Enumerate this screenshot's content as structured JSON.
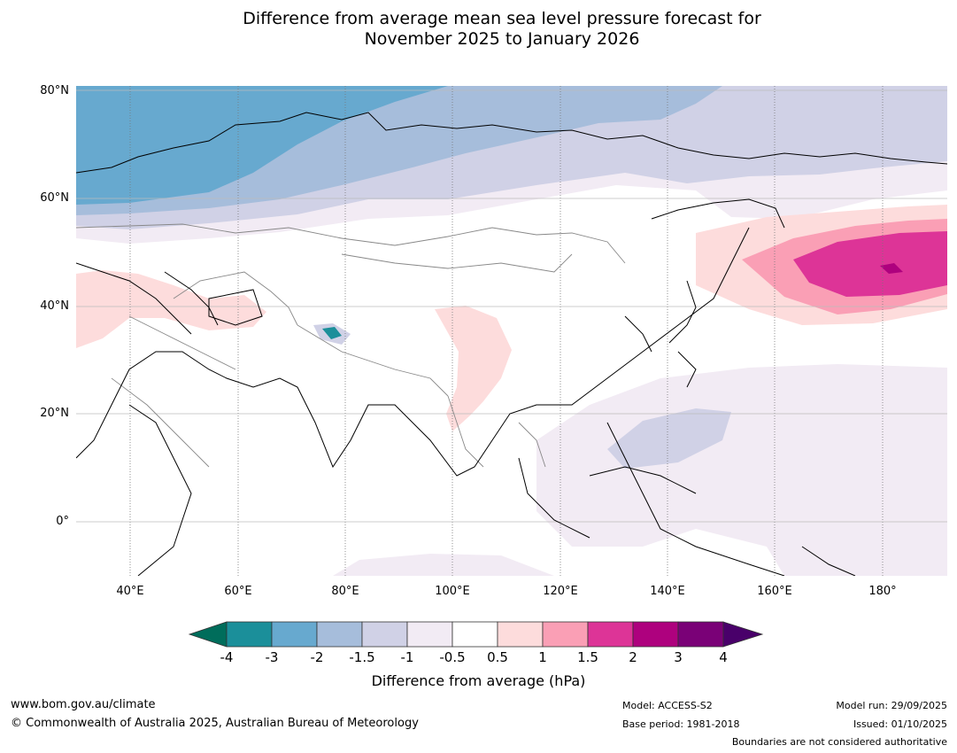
{
  "title": {
    "line1": "Difference from average mean sea level pressure forecast for",
    "line2": "November 2025 to January 2026"
  },
  "map": {
    "lat_labels": [
      "80°N",
      "60°N",
      "40°N",
      "20°N",
      "0°"
    ],
    "lon_labels": [
      "40°E",
      "60°E",
      "80°E",
      "100°E",
      "120°E",
      "140°E",
      "160°E",
      "180°"
    ],
    "lon_range": [
      30,
      192
    ],
    "lat_range": [
      -10,
      81
    ]
  },
  "legend": {
    "title": "Difference from average (hPa)",
    "ticks": [
      "-4",
      "-3",
      "-2",
      "-1.5",
      "-1",
      "-0.5",
      "0.5",
      "1",
      "1.5",
      "2",
      "3",
      "4"
    ],
    "colors": [
      "#006d5b",
      "#1b8f9a",
      "#67a9cf",
      "#a6bddb",
      "#d0d1e6",
      "#f2ebf4",
      "#ffffff",
      "#fddcdc",
      "#fa9fb5",
      "#dd3497",
      "#ae017e",
      "#7a0177",
      "#49006a"
    ]
  },
  "footer": {
    "website": "www.bom.gov.au/climate",
    "copyright": "© Commonwealth of Australia 2025, Australian Bureau of Meteorology",
    "model": "Model: ACCESS-S2",
    "base_period": "Base period: 1981-2018",
    "model_run": "Model run: 29/09/2025",
    "issued": "Issued: 01/10/2025",
    "disclaimer": "Boundaries are not considered authoritative"
  }
}
